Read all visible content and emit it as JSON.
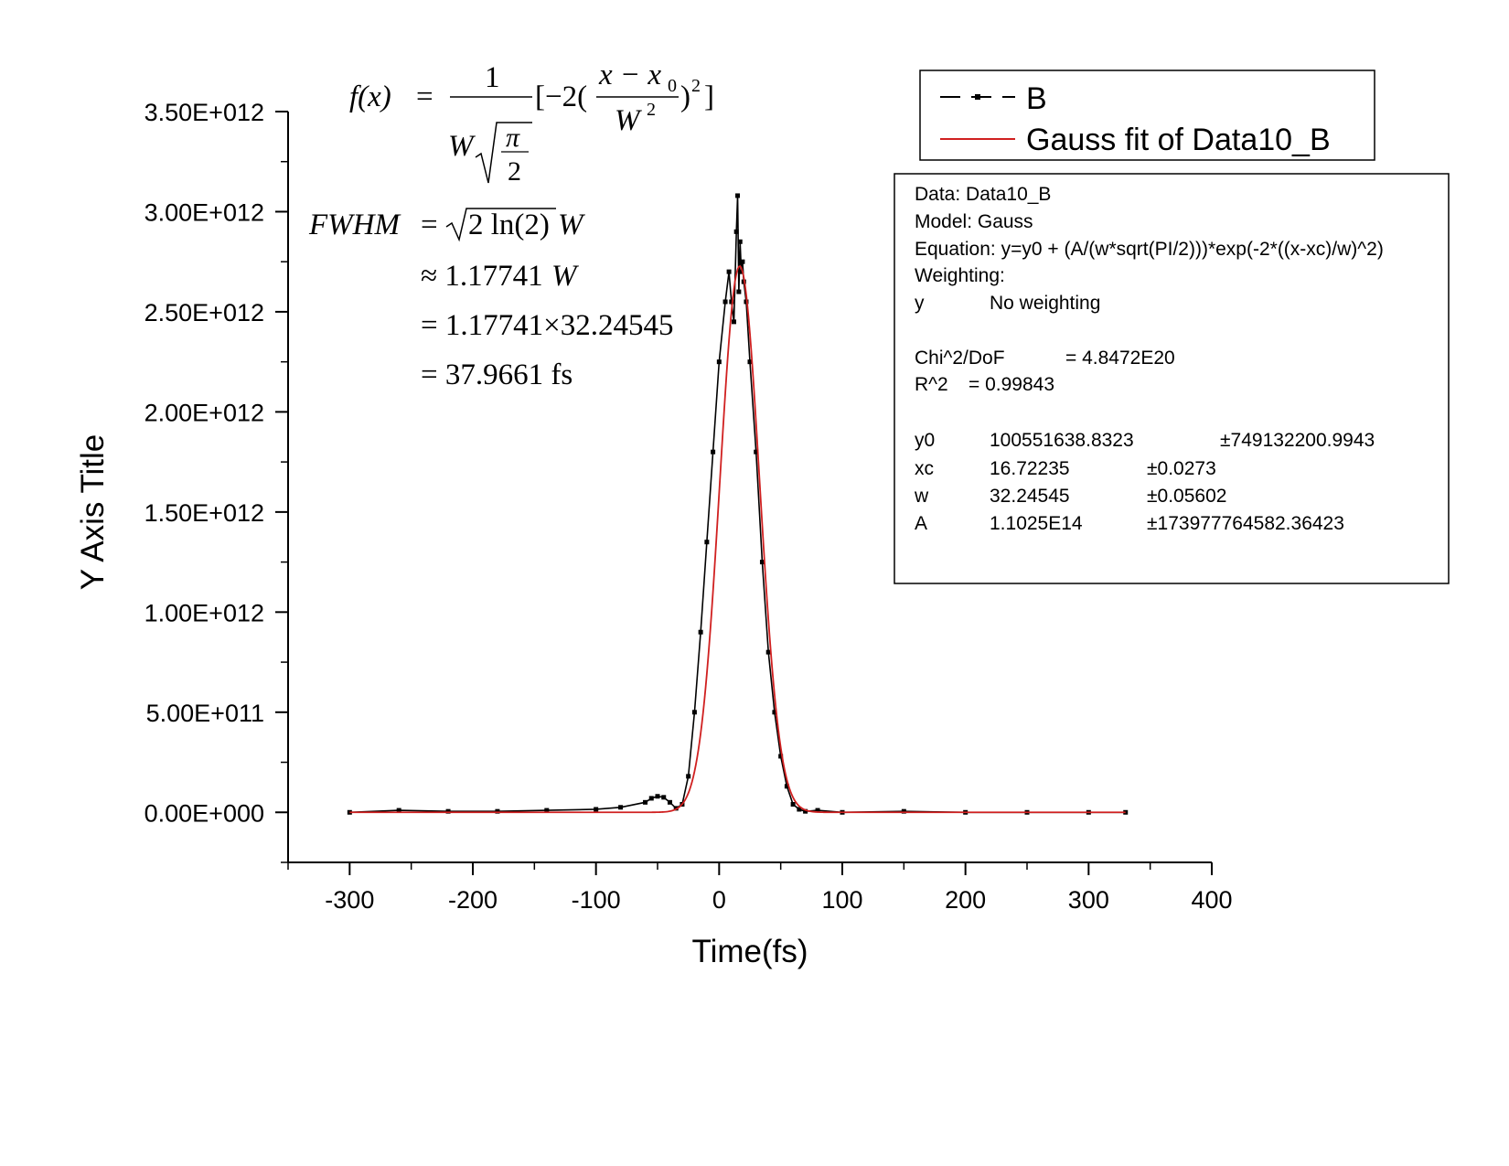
{
  "chart_data": {
    "type": "scatter",
    "xlabel": "Time(fs)",
    "ylabel": "Y Axis Title",
    "xlim": [
      -350,
      400
    ],
    "ylim": [
      -250000000000,
      3500000000000
    ],
    "x_ticks": [
      -300,
      -200,
      -100,
      0,
      100,
      200,
      300,
      400
    ],
    "x_tick_labels": [
      "-300",
      "-200",
      "-100",
      "0",
      "100",
      "200",
      "300",
      "400"
    ],
    "y_ticks": [
      0,
      500000000000,
      1000000000000,
      1500000000000,
      2000000000000,
      2500000000000,
      3000000000000,
      3500000000000
    ],
    "y_tick_labels": [
      "0.00E+000",
      "5.00E+011",
      "1.00E+012",
      "1.50E+012",
      "2.00E+012",
      "2.50E+012",
      "3.00E+012",
      "3.50E+012"
    ],
    "grid": false,
    "legend_position": "top-right",
    "series": [
      {
        "name": "B",
        "style": "line+symbol",
        "color": "#000000",
        "x": [
          -300,
          -260,
          -220,
          -180,
          -140,
          -100,
          -80,
          -60,
          -55,
          -50,
          -45,
          -40,
          -35,
          -30,
          -25,
          -20,
          -15,
          -10,
          -5,
          0,
          5,
          8,
          10,
          12,
          14,
          15,
          16,
          17,
          18,
          19,
          20,
          22,
          25,
          30,
          35,
          40,
          45,
          50,
          55,
          60,
          65,
          70,
          80,
          100,
          150,
          200,
          250,
          300,
          330
        ],
        "y": [
          0,
          10000000000,
          5000000000,
          5000000000,
          10000000000,
          15000000000,
          25000000000,
          50000000000,
          70000000000,
          80000000000,
          75000000000,
          50000000000,
          20000000000,
          40000000000,
          180000000000,
          500000000000,
          900000000000,
          1350000000000,
          1800000000000,
          2250000000000,
          2550000000000,
          2700000000000,
          2550000000000,
          2450000000000,
          2900000000000,
          3080000000000,
          2600000000000,
          2850000000000,
          2700000000000,
          2750000000000,
          2650000000000,
          2550000000000,
          2250000000000,
          1800000000000,
          1250000000000,
          800000000000,
          500000000000,
          280000000000,
          130000000000,
          40000000000,
          15000000000,
          5000000000,
          10000000000,
          0,
          5000000000,
          0,
          0,
          0,
          0
        ]
      },
      {
        "name": "Gauss fit of Data10_B",
        "style": "line",
        "color": "#d02020",
        "model": {
          "y0": 100551638.8323,
          "xc": 16.72235,
          "w": 32.24545,
          "A": 110250000000000
        },
        "x_range": [
          -300,
          330
        ]
      }
    ]
  },
  "legend": {
    "items": [
      {
        "label": "B",
        "color": "#000000"
      },
      {
        "label": "Gauss fit of Data10_B",
        "color": "#d02020"
      }
    ]
  },
  "stats_box": {
    "lines": [
      {
        "k": "Data: Data10_B",
        "v": "",
        "e": ""
      },
      {
        "k": "Model: Gauss",
        "v": "",
        "e": ""
      },
      {
        "k": "Equation: y=y0 + (A/(w*sqrt(PI/2)))*exp(-2*((x-xc)/w)^2)",
        "v": "",
        "e": ""
      },
      {
        "k": "Weighting:",
        "v": "",
        "e": ""
      },
      {
        "k": "y",
        "v": "No weighting",
        "e": ""
      },
      {
        "k": "Chi^2/DoF",
        "v": "= 4.8472E20",
        "e": ""
      },
      {
        "k": "R^2",
        "v": "=  0.99843",
        "e": ""
      },
      {
        "k": "y0",
        "v": "100551638.8323",
        "e": "±749132200.9943"
      },
      {
        "k": "xc",
        "v": "16.72235",
        "e": "±0.0273"
      },
      {
        "k": "w",
        "v": "32.24545",
        "e": "±0.05602"
      },
      {
        "k": "A",
        "v": "1.1025E14",
        "e": "±173977764582.36423"
      }
    ]
  },
  "formula": {
    "fx_lhs": "f(x)",
    "eq": "=",
    "numerator": "1",
    "W": "W",
    "pi": "π",
    "two": "2",
    "bracket_open": "[−2(",
    "x_minus": "x − x",
    "sub0": "0",
    "W2": "W",
    "sq": "2",
    "bracket_close": ")",
    "sq2": "2",
    "bracket_end": "]",
    "fwhm_lhs": "FWHM",
    "fwhm_rhs": "2 ln(2)",
    "fwhm_W": "W",
    "approx": "≈ 1.17741",
    "approx_W": "W",
    "line3": "= 1.17741×32.24545",
    "line4": "= 37.9661 fs"
  }
}
